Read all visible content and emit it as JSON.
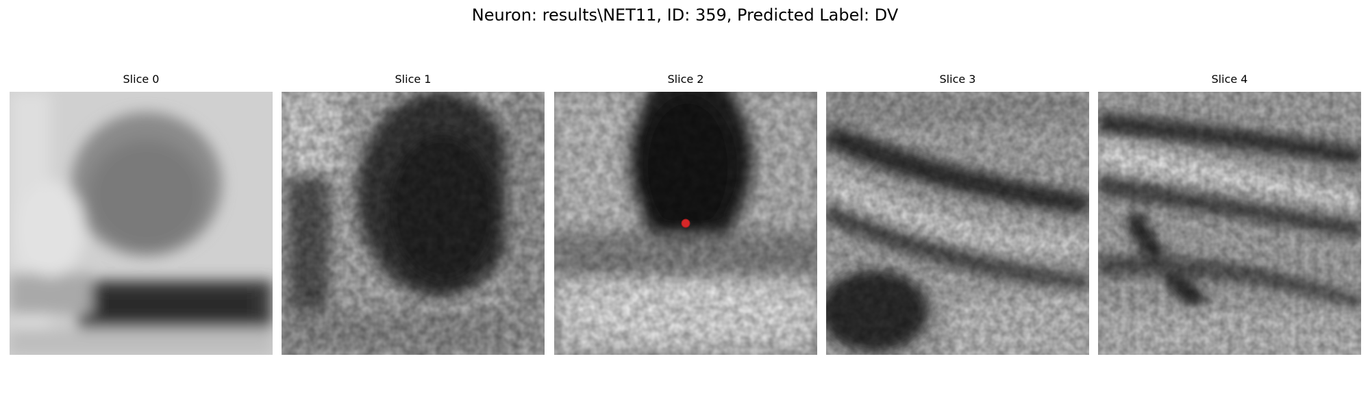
{
  "figure": {
    "title": "Neuron: results\\NET11, ID: 359, Predicted Label: DV"
  },
  "panels": [
    {
      "title": "Slice 0",
      "image_description": "grayscale EM patch: medium-gray rounded blob in upper center, dark horizontal band in lower portion, bright surroundings"
    },
    {
      "title": "Slice 1",
      "image_description": "grayscale EM patch: large dark rounded region in upper center, dark vertical structure at left, lighter bottom"
    },
    {
      "title": "Slice 2",
      "image_description": "grayscale EM patch: very dark region in upper center, bright band along bottom, red marker below dark region"
    },
    {
      "title": "Slice 3",
      "image_description": "grayscale EM patch: diagonal dark and light bands across middle, dark blob at lower left"
    },
    {
      "title": "Slice 4",
      "image_description": "grayscale EM patch: several diagonal dark curving membranes with bright stripes between"
    }
  ],
  "marker": {
    "color": "#d62728",
    "shape": "circle",
    "panel": "Slice 2"
  }
}
